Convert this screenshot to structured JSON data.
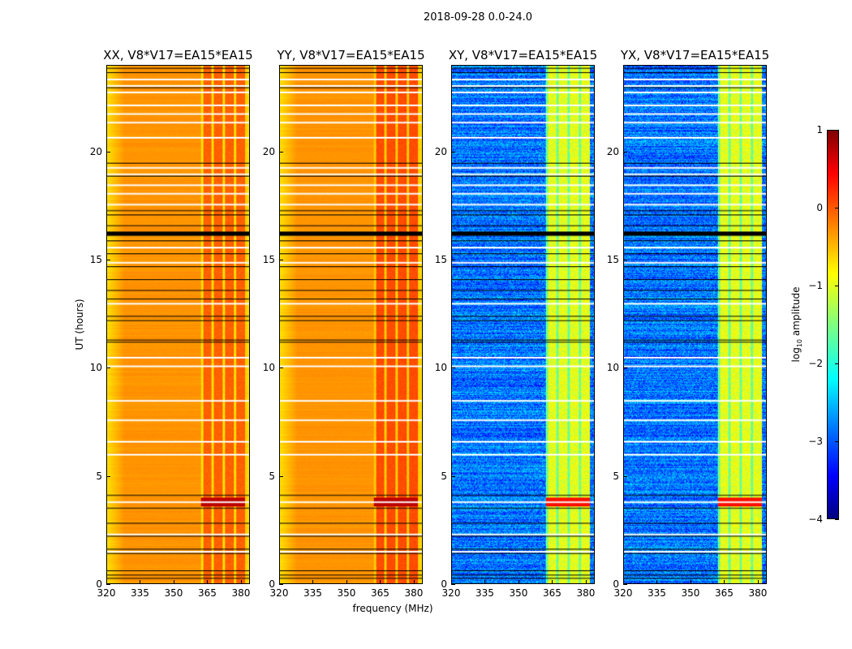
{
  "suptitle": "2018-09-28 0.0-24.0",
  "chart_data": {
    "type": "heatmap",
    "panels": [
      {
        "title": "XX, V8*V17=EA15*EA15",
        "base_log_amp": -0.35,
        "band_log_amp": -0.1,
        "kind": "parallel"
      },
      {
        "title": "YY, V8*V17=EA15*EA15",
        "base_log_amp": -0.35,
        "band_log_amp": 0.0,
        "kind": "parallel"
      },
      {
        "title": "XY, V8*V17=EA15*EA15",
        "base_log_amp": -2.8,
        "band_log_amp": -1.0,
        "kind": "cross"
      },
      {
        "title": "YX, V8*V17=EA15*EA15",
        "base_log_amp": -2.8,
        "band_log_amp": -1.0,
        "kind": "cross"
      }
    ],
    "xlabel": "frequency (MHz)",
    "ylabel": "UT (hours)",
    "xlim": [
      320,
      384
    ],
    "ylim": [
      0,
      24
    ],
    "xticks": [
      "320",
      "335",
      "350",
      "365",
      "380"
    ],
    "yticks": [
      "0",
      "5",
      "10",
      "15",
      "20"
    ],
    "band_MHz": [
      362,
      382
    ],
    "strong_rfi_hours": [
      3.6,
      4.0
    ],
    "flagged_white_hours": [
      23.4,
      23.1,
      22.8,
      22.2,
      21.8,
      21.4,
      20.7,
      19.3,
      19.0,
      18.5,
      18.1,
      17.6,
      15.6,
      14.9,
      13.0,
      10.5,
      10.1,
      8.5,
      7.6,
      6.6,
      6.0,
      3.8,
      2.3,
      1.5
    ],
    "flagged_black_hours": [
      23.9,
      23.7,
      23.0,
      19.5,
      18.9,
      17.3,
      17.1,
      16.6,
      16.3,
      15.9,
      15.3,
      14.7,
      14.1,
      13.6,
      13.2,
      12.4,
      12.2,
      11.3,
      11.2,
      4.1,
      3.5,
      2.8,
      2.2,
      1.6,
      1.4,
      0.6,
      0.4,
      0.25
    ],
    "colorbar": {
      "label_prefix": "log",
      "label_sub": "10",
      "label_suffix": " amplitude",
      "range": [
        -4,
        1
      ],
      "ticks": [
        "1",
        "0",
        "−1",
        "−2",
        "−3",
        "−4"
      ],
      "colormap": "jet"
    }
  }
}
